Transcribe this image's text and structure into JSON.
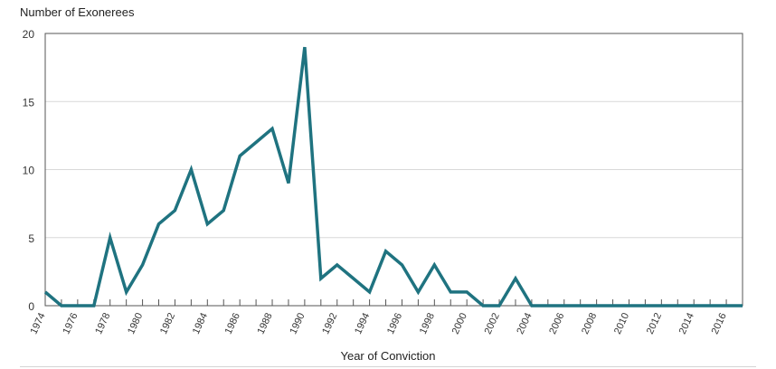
{
  "chart_data": {
    "type": "line",
    "ylabel": "Number of Exonerees",
    "xlabel": "Year of Conviction",
    "ylim": [
      0,
      20
    ],
    "yticks": [
      0,
      5,
      10,
      15,
      20
    ],
    "xlim": [
      1974,
      2017
    ],
    "xticks": [
      1974,
      1976,
      1978,
      1980,
      1982,
      1984,
      1986,
      1988,
      1990,
      1992,
      1994,
      1996,
      1998,
      2000,
      2002,
      2004,
      2006,
      2008,
      2010,
      2012,
      2014,
      2016
    ],
    "grid": "horizontal",
    "line_color": "#1f7380",
    "series": [
      {
        "x": [
          1974,
          1975,
          1976,
          1977,
          1978,
          1979,
          1980,
          1981,
          1982,
          1983,
          1984,
          1985,
          1986,
          1987,
          1988,
          1989,
          1990,
          1991,
          1992,
          1993,
          1994,
          1995,
          1996,
          1997,
          1998,
          1999,
          2000,
          2001,
          2002,
          2003,
          2004,
          2005,
          2006,
          2007,
          2008,
          2009,
          2010,
          2011,
          2012,
          2013,
          2014,
          2015,
          2016,
          2017
        ],
        "values": [
          1,
          0,
          0,
          0,
          5,
          1,
          3,
          6,
          7,
          10,
          6,
          7,
          11,
          12,
          13,
          9,
          19,
          2,
          3,
          2,
          1,
          4,
          3,
          1,
          3,
          1,
          1,
          0,
          0,
          2,
          0,
          0,
          0,
          0,
          0,
          0,
          0,
          0,
          0,
          0,
          0,
          0,
          0,
          0
        ]
      }
    ]
  }
}
